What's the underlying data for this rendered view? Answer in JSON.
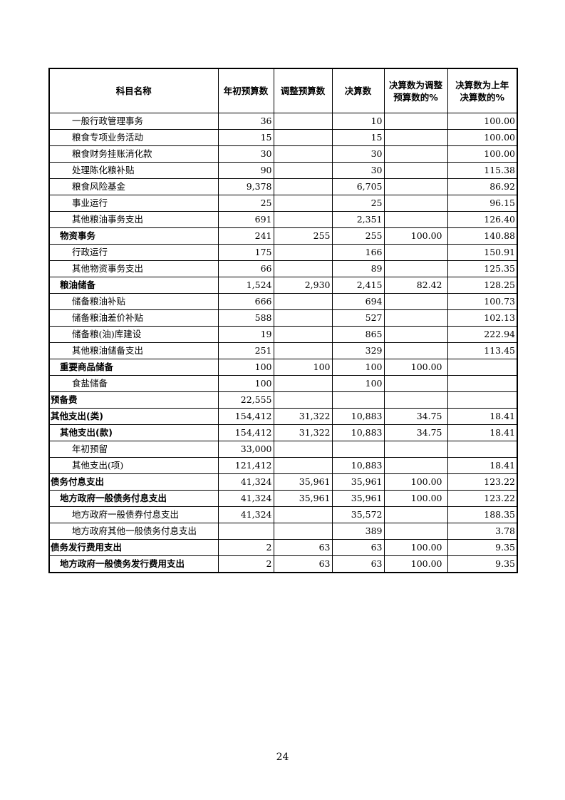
{
  "table": {
    "headers": [
      "科目名称",
      "年初预算数",
      "调整预算数",
      "决算数",
      "决算数为调整预算数的%",
      "决算数为上年决算数的%"
    ],
    "rows": [
      {
        "name": "一般行政管理事务",
        "level": 2,
        "v": [
          "36",
          "",
          "10",
          "",
          "100.00"
        ]
      },
      {
        "name": "粮食专项业务活动",
        "level": 2,
        "v": [
          "15",
          "",
          "15",
          "",
          "100.00"
        ]
      },
      {
        "name": "粮食财务挂账消化款",
        "level": 2,
        "v": [
          "30",
          "",
          "30",
          "",
          "100.00"
        ]
      },
      {
        "name": "处理陈化粮补贴",
        "level": 2,
        "v": [
          "90",
          "",
          "30",
          "",
          "115.38"
        ]
      },
      {
        "name": "粮食风险基金",
        "level": 2,
        "v": [
          "9,378",
          "",
          "6,705",
          "",
          "86.92"
        ]
      },
      {
        "name": "事业运行",
        "level": 2,
        "v": [
          "25",
          "",
          "25",
          "",
          "96.15"
        ]
      },
      {
        "name": "其他粮油事务支出",
        "level": 2,
        "v": [
          "691",
          "",
          "2,351",
          "",
          "126.40"
        ]
      },
      {
        "name": "物资事务",
        "level": 1,
        "v": [
          "241",
          "255",
          "255",
          "100.00",
          "140.88"
        ]
      },
      {
        "name": "行政运行",
        "level": 2,
        "v": [
          "175",
          "",
          "166",
          "",
          "150.91"
        ]
      },
      {
        "name": "其他物资事务支出",
        "level": 2,
        "v": [
          "66",
          "",
          "89",
          "",
          "125.35"
        ]
      },
      {
        "name": "粮油储备",
        "level": 1,
        "v": [
          "1,524",
          "2,930",
          "2,415",
          "82.42",
          "128.25"
        ]
      },
      {
        "name": "储备粮油补贴",
        "level": 2,
        "v": [
          "666",
          "",
          "694",
          "",
          "100.73"
        ]
      },
      {
        "name": "储备粮油差价补贴",
        "level": 2,
        "v": [
          "588",
          "",
          "527",
          "",
          "102.13"
        ]
      },
      {
        "name": "储备粮(油)库建设",
        "level": 2,
        "v": [
          "19",
          "",
          "865",
          "",
          "222.94"
        ]
      },
      {
        "name": "其他粮油储备支出",
        "level": 2,
        "v": [
          "251",
          "",
          "329",
          "",
          "113.45"
        ]
      },
      {
        "name": "重要商品储备",
        "level": 1,
        "v": [
          "100",
          "100",
          "100",
          "100.00",
          ""
        ]
      },
      {
        "name": "食盐储备",
        "level": 2,
        "v": [
          "100",
          "",
          "100",
          "",
          ""
        ]
      },
      {
        "name": "预备费",
        "level": 0,
        "v": [
          "22,555",
          "",
          "",
          "",
          ""
        ]
      },
      {
        "name": "其他支出(类)",
        "level": 0,
        "v": [
          "154,412",
          "31,322",
          "10,883",
          "34.75",
          "18.41"
        ]
      },
      {
        "name": "其他支出(款)",
        "level": 1,
        "v": [
          "154,412",
          "31,322",
          "10,883",
          "34.75",
          "18.41"
        ]
      },
      {
        "name": "年初预留",
        "level": 2,
        "v": [
          "33,000",
          "",
          "",
          "",
          ""
        ]
      },
      {
        "name": "其他支出(项)",
        "level": 2,
        "v": [
          "121,412",
          "",
          "10,883",
          "",
          "18.41"
        ]
      },
      {
        "name": "债务付息支出",
        "level": 0,
        "v": [
          "41,324",
          "35,961",
          "35,961",
          "100.00",
          "123.22"
        ]
      },
      {
        "name": "地方政府一般债务付息支出",
        "level": 1,
        "v": [
          "41,324",
          "35,961",
          "35,961",
          "100.00",
          "123.22"
        ]
      },
      {
        "name": "地方政府一般债券付息支出",
        "level": 2,
        "v": [
          "41,324",
          "",
          "35,572",
          "",
          "188.35"
        ]
      },
      {
        "name": "地方政府其他一般债务付息支出",
        "level": 2,
        "v": [
          "",
          "",
          "389",
          "",
          "3.78"
        ]
      },
      {
        "name": "债务发行费用支出",
        "level": 0,
        "v": [
          "2",
          "63",
          "63",
          "100.00",
          "9.35"
        ]
      },
      {
        "name": "地方政府一般债务发行费用支出",
        "level": 1,
        "v": [
          "2",
          "63",
          "63",
          "100.00",
          "9.35"
        ]
      }
    ]
  },
  "page_number": "24"
}
